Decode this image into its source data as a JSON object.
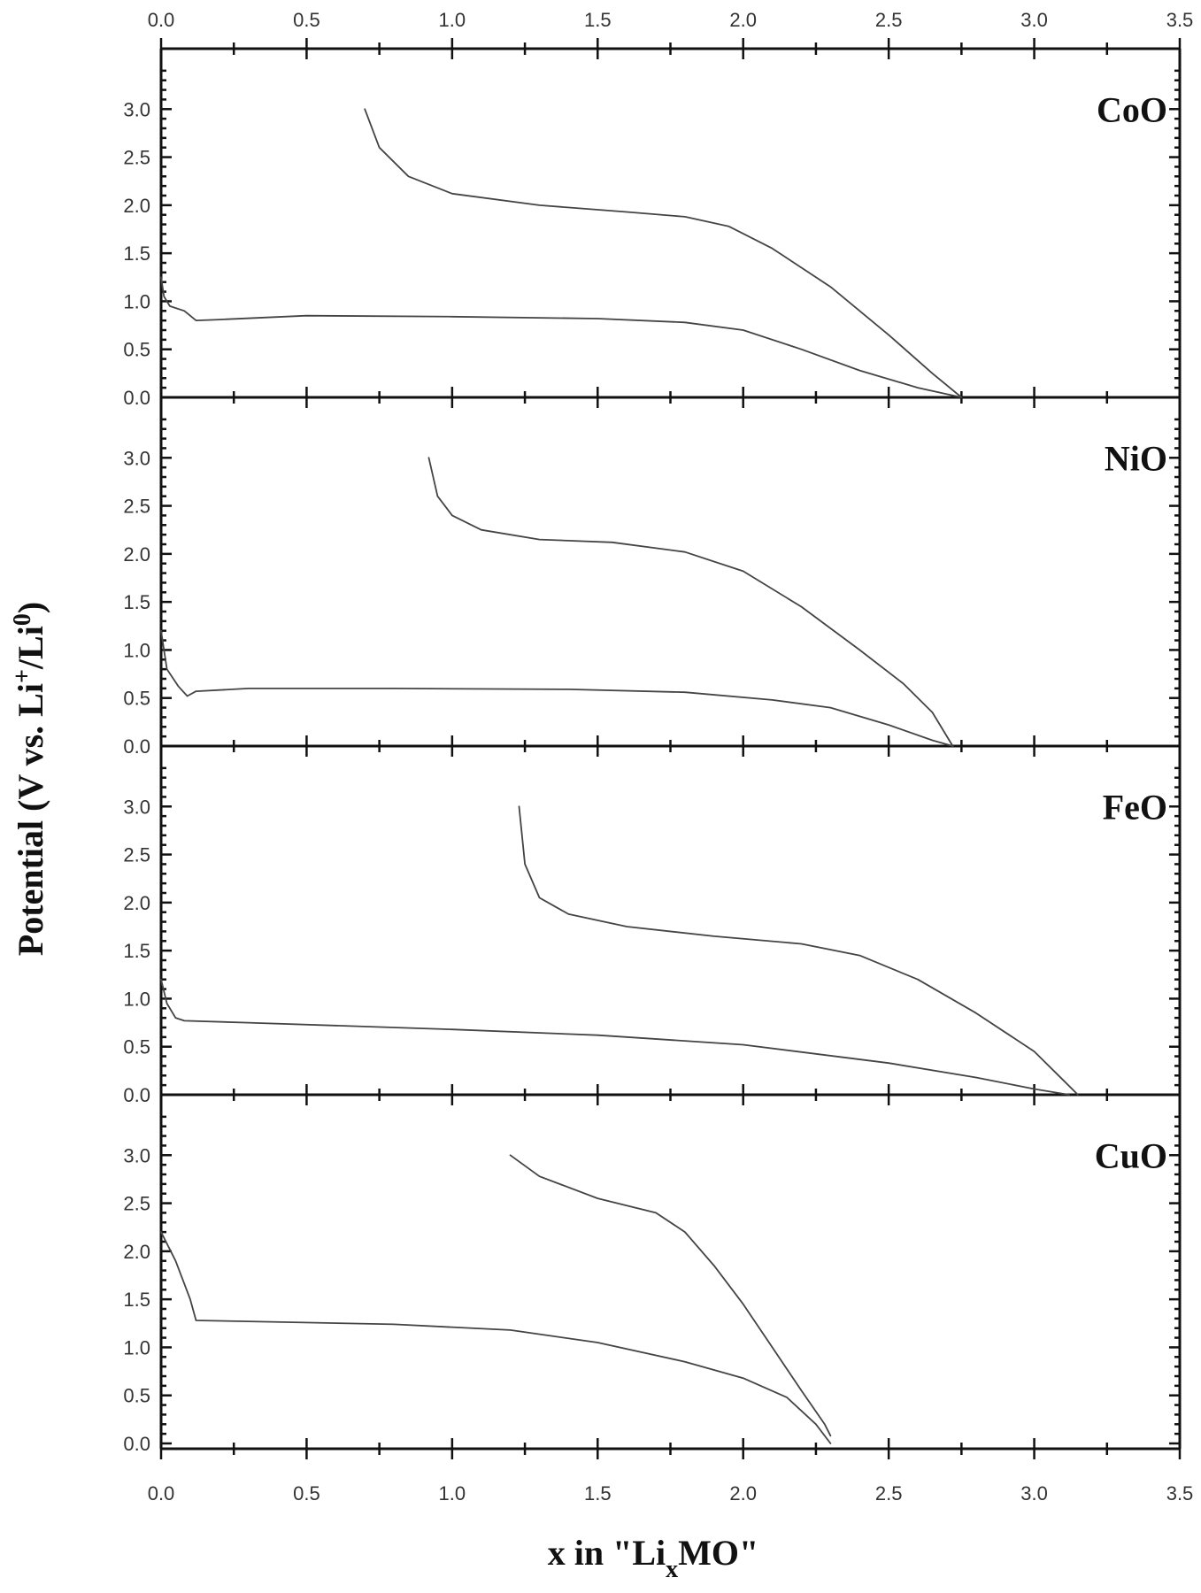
{
  "chart_data": {
    "type": "line",
    "xlabel": {
      "prefix": "x in \"Li",
      "sub": "x",
      "suffix": "MO\""
    },
    "ylabel": "Potential (V vs. Li+/Li0)",
    "xlim": [
      0,
      3.5
    ],
    "ylim": [
      0,
      3.5
    ],
    "x_ticks": [
      "0.0",
      "0.5",
      "1.0",
      "1.5",
      "2.0",
      "2.5",
      "3.0",
      "3.5"
    ],
    "y_ticks": [
      "0.0",
      "0.5",
      "1.0",
      "1.5",
      "2.0",
      "2.5",
      "3.0"
    ],
    "panels": [
      {
        "label": "CoO",
        "discharge": [
          [
            0.0,
            1.25
          ],
          [
            0.01,
            1.05
          ],
          [
            0.03,
            0.95
          ],
          [
            0.08,
            0.9
          ],
          [
            0.12,
            0.8
          ],
          [
            0.2,
            0.81
          ],
          [
            0.5,
            0.85
          ],
          [
            1.0,
            0.84
          ],
          [
            1.5,
            0.82
          ],
          [
            1.8,
            0.78
          ],
          [
            2.0,
            0.7
          ],
          [
            2.2,
            0.5
          ],
          [
            2.4,
            0.28
          ],
          [
            2.6,
            0.1
          ],
          [
            2.75,
            0.0
          ]
        ],
        "charge": [
          [
            0.7,
            3.0
          ],
          [
            0.75,
            2.6
          ],
          [
            0.85,
            2.3
          ],
          [
            1.0,
            2.12
          ],
          [
            1.3,
            2.0
          ],
          [
            1.6,
            1.93
          ],
          [
            1.8,
            1.88
          ],
          [
            1.95,
            1.78
          ],
          [
            2.1,
            1.55
          ],
          [
            2.3,
            1.15
          ],
          [
            2.5,
            0.65
          ],
          [
            2.65,
            0.25
          ],
          [
            2.75,
            0.0
          ]
        ]
      },
      {
        "label": "NiO",
        "discharge": [
          [
            0.0,
            1.2
          ],
          [
            0.02,
            0.8
          ],
          [
            0.06,
            0.62
          ],
          [
            0.09,
            0.52
          ],
          [
            0.12,
            0.57
          ],
          [
            0.3,
            0.6
          ],
          [
            0.8,
            0.6
          ],
          [
            1.4,
            0.59
          ],
          [
            1.8,
            0.56
          ],
          [
            2.1,
            0.48
          ],
          [
            2.3,
            0.4
          ],
          [
            2.5,
            0.22
          ],
          [
            2.65,
            0.06
          ],
          [
            2.72,
            0.0
          ]
        ],
        "charge": [
          [
            0.92,
            3.0
          ],
          [
            0.95,
            2.6
          ],
          [
            1.0,
            2.4
          ],
          [
            1.1,
            2.25
          ],
          [
            1.3,
            2.15
          ],
          [
            1.55,
            2.12
          ],
          [
            1.8,
            2.02
          ],
          [
            2.0,
            1.82
          ],
          [
            2.2,
            1.45
          ],
          [
            2.4,
            1.0
          ],
          [
            2.55,
            0.65
          ],
          [
            2.65,
            0.35
          ],
          [
            2.72,
            0.0
          ]
        ]
      },
      {
        "label": "FeO",
        "discharge": [
          [
            0.0,
            1.2
          ],
          [
            0.02,
            0.95
          ],
          [
            0.05,
            0.8
          ],
          [
            0.08,
            0.77
          ],
          [
            0.3,
            0.75
          ],
          [
            1.0,
            0.68
          ],
          [
            1.5,
            0.62
          ],
          [
            2.0,
            0.52
          ],
          [
            2.5,
            0.33
          ],
          [
            2.8,
            0.18
          ],
          [
            3.0,
            0.06
          ],
          [
            3.12,
            0.0
          ]
        ],
        "charge": [
          [
            1.23,
            3.0
          ],
          [
            1.25,
            2.4
          ],
          [
            1.3,
            2.05
          ],
          [
            1.4,
            1.88
          ],
          [
            1.6,
            1.75
          ],
          [
            1.9,
            1.65
          ],
          [
            2.2,
            1.57
          ],
          [
            2.4,
            1.45
          ],
          [
            2.6,
            1.2
          ],
          [
            2.8,
            0.85
          ],
          [
            3.0,
            0.45
          ],
          [
            3.1,
            0.15
          ],
          [
            3.15,
            0.0
          ]
        ]
      },
      {
        "label": "CuO",
        "discharge": [
          [
            0.0,
            2.2
          ],
          [
            0.05,
            1.9
          ],
          [
            0.1,
            1.5
          ],
          [
            0.12,
            1.28
          ],
          [
            0.3,
            1.27
          ],
          [
            0.8,
            1.24
          ],
          [
            1.2,
            1.18
          ],
          [
            1.5,
            1.05
          ],
          [
            1.8,
            0.85
          ],
          [
            2.0,
            0.68
          ],
          [
            2.15,
            0.48
          ],
          [
            2.25,
            0.2
          ],
          [
            2.3,
            0.0
          ]
        ],
        "charge": [
          [
            1.2,
            3.0
          ],
          [
            1.3,
            2.78
          ],
          [
            1.5,
            2.55
          ],
          [
            1.7,
            2.4
          ],
          [
            1.8,
            2.2
          ],
          [
            1.9,
            1.85
          ],
          [
            2.0,
            1.45
          ],
          [
            2.1,
            1.0
          ],
          [
            2.2,
            0.55
          ],
          [
            2.28,
            0.2
          ],
          [
            2.3,
            0.08
          ]
        ]
      }
    ]
  }
}
